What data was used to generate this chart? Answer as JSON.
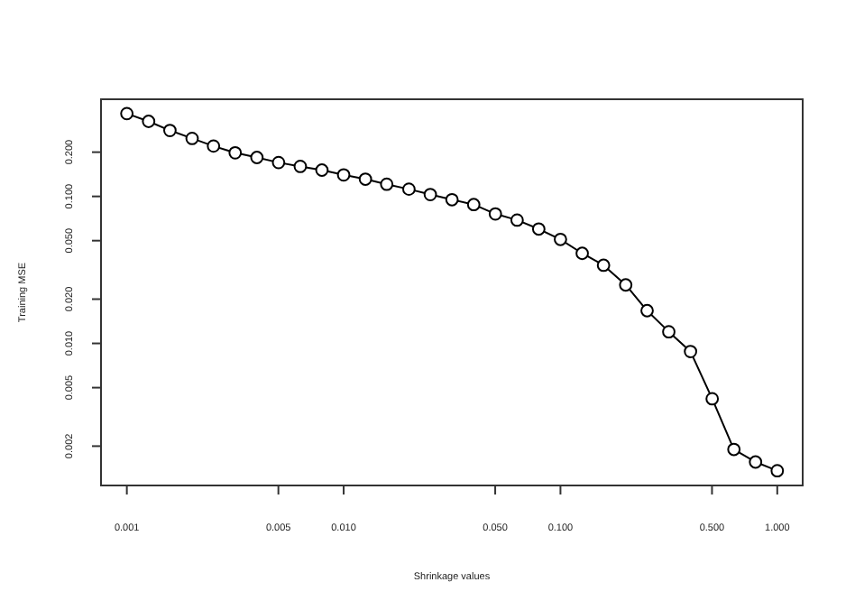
{
  "chart_data": {
    "type": "line",
    "xlabel": "Shrinkage values",
    "ylabel": "Training MSE",
    "log": "xy",
    "marker": "circle",
    "line_style": "solid",
    "grid": false,
    "x": [
      0.001,
      0.00126,
      0.00158,
      0.002,
      0.00251,
      0.00316,
      0.00398,
      0.00501,
      0.00631,
      0.00794,
      0.01,
      0.0126,
      0.0158,
      0.02,
      0.0251,
      0.0316,
      0.0398,
      0.0501,
      0.0631,
      0.0794,
      0.1,
      0.126,
      0.158,
      0.2,
      0.251,
      0.316,
      0.398,
      0.501,
      0.631,
      0.794,
      1
    ],
    "series": [
      {
        "color": "#000000",
        "values": [
          0.366,
          0.324,
          0.281,
          0.248,
          0.22,
          0.198,
          0.184,
          0.17,
          0.16,
          0.151,
          0.14,
          0.131,
          0.121,
          0.112,
          0.103,
          0.095,
          0.088,
          0.076,
          0.069,
          0.06,
          0.051,
          0.041,
          0.034,
          0.025,
          0.0167,
          0.012,
          0.0088,
          0.0042,
          0.0019,
          0.00156,
          0.00136
        ]
      }
    ],
    "xlim": [
      0.00076,
      1.31
    ],
    "ylim": [
      0.00108,
      0.458
    ],
    "xticks": [
      {
        "value": 0.001,
        "label": "0.001"
      },
      {
        "value": 0.005,
        "label": "0.005"
      },
      {
        "value": 0.01,
        "label": "0.010"
      },
      {
        "value": 0.05,
        "label": "0.050"
      },
      {
        "value": 0.1,
        "label": "0.100"
      },
      {
        "value": 0.5,
        "label": "0.500"
      },
      {
        "value": 1,
        "label": "1.000"
      }
    ],
    "yticks": [
      {
        "value": 0.002,
        "label": "0.002"
      },
      {
        "value": 0.005,
        "label": "0.005"
      },
      {
        "value": 0.01,
        "label": "0.010"
      },
      {
        "value": 0.02,
        "label": "0.020"
      },
      {
        "value": 0.05,
        "label": "0.050"
      },
      {
        "value": 0.1,
        "label": "0.100"
      },
      {
        "value": 0.2,
        "label": "0.200"
      }
    ]
  }
}
